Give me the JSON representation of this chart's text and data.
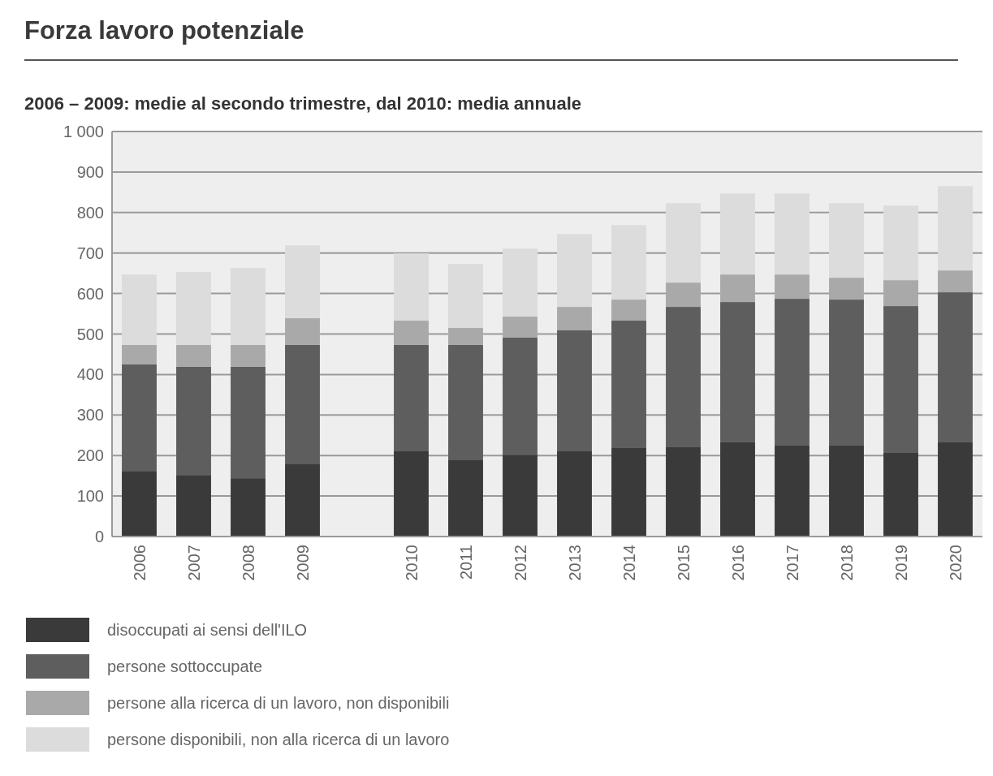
{
  "chart_data": {
    "type": "bar",
    "title": "Forza lavoro potenziale",
    "subtitle": "2006 – 2009: medie al secondo trimestre, dal 2010: media annuale",
    "categories": [
      "2006",
      "2007",
      "2008",
      "2009",
      null,
      "2010",
      "2011",
      "2012",
      "2013",
      "2014",
      "2015",
      "2016",
      "2017",
      "2018",
      "2019",
      "2020"
    ],
    "stacked": true,
    "ylim": [
      0,
      1000
    ],
    "yticks": [
      0,
      100,
      200,
      300,
      400,
      500,
      600,
      700,
      800,
      900,
      {
        "value": 1000,
        "label": "1 000"
      }
    ],
    "grid": "y",
    "legend": "bottom",
    "series": [
      {
        "name": "disoccupati ai sensi dell'ILO",
        "color": "#3a3a3a",
        "values": [
          162,
          152,
          144,
          180,
          null,
          212,
          190,
          202,
          212,
          220,
          222,
          234,
          226,
          226,
          208,
          234
        ]
      },
      {
        "name": "persone sottoccupate",
        "color": "#5e5e5e",
        "values": [
          263,
          267,
          275,
          293,
          null,
          261,
          283,
          289,
          297,
          313,
          345,
          345,
          361,
          359,
          361,
          369
        ]
      },
      {
        "name": "persone alla ricerca di un lavoro, non disponibili",
        "color": "#a9a9a9",
        "values": [
          48,
          54,
          54,
          66,
          null,
          60,
          42,
          52,
          58,
          52,
          60,
          68,
          60,
          54,
          64,
          54
        ]
      },
      {
        "name": "persone disponibili, non alla ricerca di un lavoro",
        "color": "#dcdcdc",
        "values": [
          174,
          180,
          190,
          180,
          null,
          166,
          158,
          168,
          180,
          184,
          196,
          200,
          200,
          184,
          184,
          208
        ]
      }
    ]
  }
}
